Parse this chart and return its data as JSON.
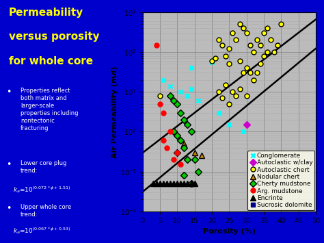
{
  "bg_blue": "#0000cc",
  "bg_chart_outer": "#ffffcc",
  "plot_bg": "#bbbbbb",
  "title_color": "#ffff00",
  "bullet_color": "#ffffff",
  "xlabel": "Porosity (%)",
  "ylabel": "Air Permeability (md)",
  "xlim": [
    0,
    50
  ],
  "ylim_log": [
    0.01,
    1000
  ],
  "xticks": [
    0,
    5,
    10,
    15,
    20,
    25,
    30,
    35,
    40,
    45,
    50
  ],
  "trend1_slope": 0.072,
  "trend1_intercept": -1.51,
  "trend2_slope": 0.067,
  "trend2_intercept": -0.53,
  "series_order": [
    "Conglomerate",
    "Autoclastic w/clay",
    "Autoclastic chert",
    "Nodular chert",
    "Cherty mudstone",
    "Arg. mudstone",
    "Encrinte",
    "Sucrosic dolomite"
  ],
  "series": {
    "Conglomerate": {
      "color": "cyan",
      "marker": "x",
      "ms": 5,
      "mew": 2.0,
      "mec": "cyan",
      "x": [
        6,
        8,
        11,
        13,
        14,
        14,
        16,
        20,
        22,
        25,
        29
      ],
      "y": [
        20,
        14,
        10,
        8,
        12,
        40,
        6,
        55,
        3,
        1.5,
        1.0
      ]
    },
    "Autoclastic w/clay": {
      "color": "#cc00cc",
      "marker": "D",
      "ms": 5,
      "mew": 1.0,
      "mec": "#cc00cc",
      "x": [
        30
      ],
      "y": [
        1.5
      ]
    },
    "Autoclastic chert": {
      "color": "yellow",
      "marker": "o",
      "ms": 5,
      "mew": 1.0,
      "mec": "black",
      "x": [
        5,
        20,
        21,
        22,
        22,
        23,
        23,
        24,
        24,
        25,
        25,
        25,
        26,
        26,
        27,
        27,
        28,
        28,
        28,
        29,
        29,
        30,
        30,
        30,
        31,
        31,
        32,
        32,
        33,
        33,
        34,
        34,
        35,
        35,
        36,
        36,
        37,
        38,
        39,
        40
      ],
      "y": [
        8,
        60,
        70,
        200,
        10,
        150,
        7,
        80,
        15,
        120,
        50,
        5,
        300,
        10,
        200,
        8,
        500,
        60,
        12,
        400,
        30,
        300,
        40,
        8,
        150,
        30,
        100,
        20,
        200,
        30,
        150,
        50,
        300,
        80,
        400,
        100,
        200,
        100,
        150,
        500
      ]
    },
    "Nodular chert": {
      "color": "#cc8800",
      "marker": "^",
      "ms": 6,
      "mew": 1.0,
      "mec": "black",
      "x": [
        12,
        15,
        17
      ],
      "y": [
        0.5,
        0.3,
        0.25
      ]
    },
    "Cherty mudstone": {
      "color": "#00cc00",
      "marker": "D",
      "ms": 5,
      "mew": 1.0,
      "mec": "black",
      "x": [
        8,
        9,
        9,
        10,
        10,
        10,
        11,
        11,
        12,
        12,
        12,
        13,
        13,
        14,
        14,
        15,
        16
      ],
      "y": [
        8,
        6,
        1.0,
        5,
        0.8,
        0.3,
        3,
        0.6,
        2,
        0.4,
        0.08,
        1.5,
        0.2,
        1.0,
        0.05,
        0.2,
        0.1
      ]
    },
    "Arg. mudstone": {
      "color": "red",
      "marker": "o",
      "ms": 5,
      "mew": 1.0,
      "mec": "red",
      "x": [
        4,
        5,
        6,
        6,
        7,
        8,
        9,
        10,
        11
      ],
      "y": [
        150,
        5,
        3,
        0.6,
        0.4,
        1,
        0.2,
        0.3,
        0.15
      ]
    },
    "Encrinte": {
      "color": "black",
      "marker": "^",
      "ms": 6,
      "mew": 1.0,
      "mec": "black",
      "x": [
        3,
        4,
        5,
        6,
        7,
        8,
        9,
        10,
        11,
        12,
        13,
        14,
        15
      ],
      "y": [
        0.05,
        0.05,
        0.05,
        0.05,
        0.05,
        0.05,
        0.05,
        0.05,
        0.05,
        0.05,
        0.05,
        0.05,
        0.05
      ]
    },
    "Sucrosic dolomite": {
      "color": "#000088",
      "marker": "s",
      "ms": 5,
      "mew": 1.0,
      "mec": "#000088",
      "x": [],
      "y": []
    }
  },
  "grid_major_color": "#888888",
  "grid_minor_color": "#aaaaaa",
  "axis_label_fontsize": 8,
  "tick_fontsize": 7,
  "legend_fontsize": 6.5
}
